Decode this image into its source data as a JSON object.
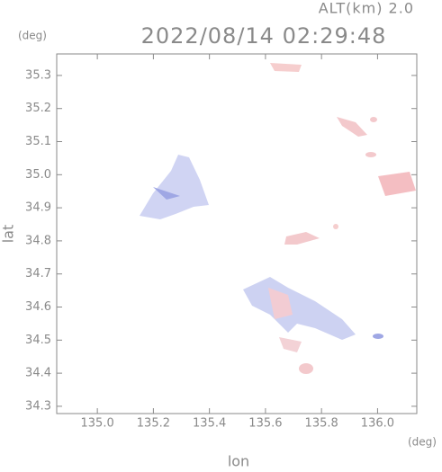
{
  "chart_data": {
    "type": "map",
    "title": "2022/08/14 02:29:48",
    "altitude_label": "ALT(km)  2.0",
    "xlabel": "lon",
    "ylabel": "lat",
    "xunit": "(deg)",
    "yunit": "(deg)",
    "xlim": [
      134.855,
      136.14
    ],
    "ylim": [
      34.278,
      35.365
    ],
    "xticks": [
      {
        "value": 135,
        "label": "135.0"
      },
      135.2,
      135.4,
      135.6,
      135.8,
      {
        "value": 136,
        "label": "136.0"
      }
    ],
    "yticks": [
      34.3,
      34.4,
      34.5,
      34.6,
      34.7,
      34.8,
      34.9,
      {
        "value": 35,
        "label": "35.0"
      },
      35.1,
      35.2,
      35.3
    ],
    "axis_color": "#8a8a8a"
  }
}
